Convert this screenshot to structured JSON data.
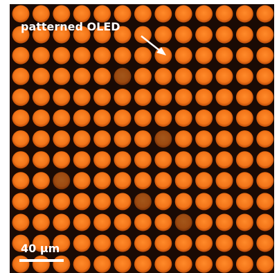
{
  "annotation": {
    "label": "patterned OLED"
  },
  "scale_bar": {
    "label": "40 µm"
  }
}
